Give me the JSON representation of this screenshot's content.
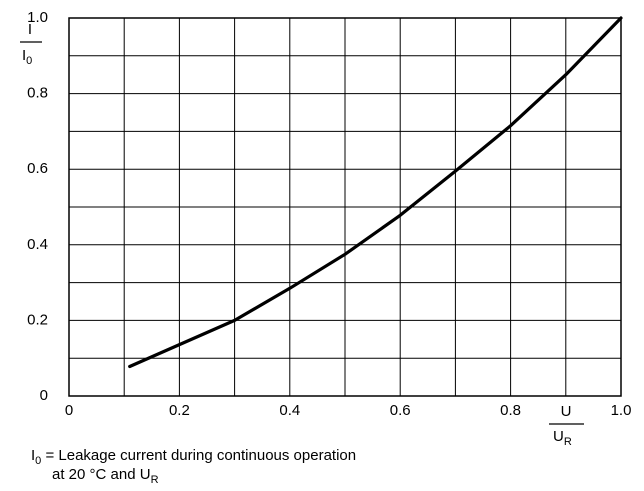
{
  "chart_data": {
    "type": "line",
    "x": [
      0.11,
      0.2,
      0.3,
      0.4,
      0.5,
      0.6,
      0.7,
      0.8,
      0.9,
      1.0
    ],
    "series": [
      {
        "color": "#000000",
        "values": [
          0.078,
          0.136,
          0.2,
          0.285,
          0.375,
          0.478,
          0.595,
          0.715,
          0.85,
          1.0
        ]
      }
    ],
    "xlim": [
      0,
      1
    ],
    "ylim": [
      0,
      1
    ],
    "xticks": [
      0,
      0.2,
      0.4,
      0.6,
      0.8,
      {
        "value": 1,
        "label": "1.0"
      }
    ],
    "yticks": [
      0,
      0.2,
      0.4,
      0.6,
      0.8,
      {
        "value": 1,
        "label": "1.0"
      }
    ],
    "xminor": [
      0.1,
      0.3,
      0.5,
      0.7,
      0.9
    ],
    "yminor": [
      0.1,
      0.3,
      0.5,
      0.7,
      0.9
    ],
    "grid": true,
    "y_label": {
      "numerator": "I",
      "denominator": "I",
      "denominator_sub": "0"
    },
    "x_label": {
      "numerator": "U",
      "denominator": "U",
      "denominator_sub": "R"
    },
    "footnote": {
      "line1_symbol": "I",
      "line1_sub": "0",
      "line1_text": " = Leakage current during continuous operation",
      "line2_text": "at 20 °C and U",
      "line2_sub": "R"
    }
  }
}
